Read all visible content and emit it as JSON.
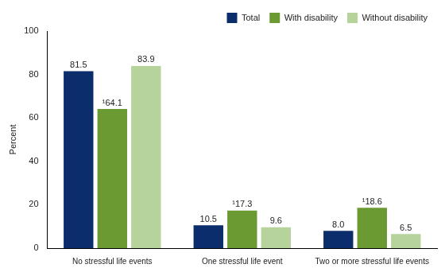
{
  "chart_data": {
    "type": "bar",
    "y_label": "Percent",
    "categories": [
      "No stressful life events",
      "One stressful life event",
      "Two or more stressful life events"
    ],
    "series": [
      {
        "name": "Total",
        "color": "#0b2d6b",
        "values": [
          81.5,
          10.5,
          8.0
        ],
        "value_labels": [
          "81.5",
          "10.5",
          "8.0"
        ]
      },
      {
        "name": "With disability",
        "color": "#6b9a32",
        "values": [
          64.1,
          17.3,
          18.6
        ],
        "value_labels": [
          "¹64.1",
          "¹17.3",
          "¹18.6"
        ]
      },
      {
        "name": "Without disability",
        "color": "#b6d39b",
        "values": [
          83.9,
          9.6,
          6.5
        ]
      }
    ],
    "ylim": [
      0,
      100
    ],
    "yticks": [
      0,
      20,
      40,
      60,
      80,
      100
    ],
    "grid": false,
    "legend": "top-right",
    "data_labels": true
  }
}
